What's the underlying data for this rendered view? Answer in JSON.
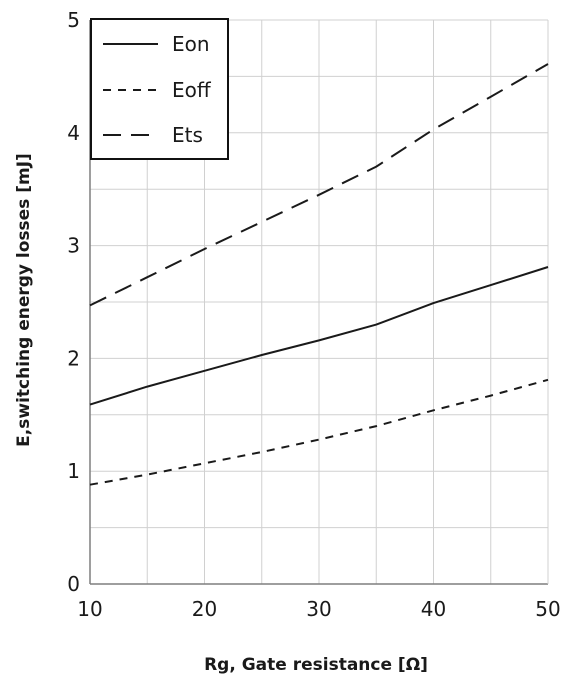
{
  "chart_data": {
    "type": "line",
    "xlabel": "Rg, Gate resistance [Ω]",
    "ylabel": "E,switching energy losses [mJ]",
    "xlim": [
      10,
      50
    ],
    "ylim": [
      0,
      5
    ],
    "x_ticks": [
      "10",
      "20",
      "30",
      "40",
      "50"
    ],
    "y_ticks": [
      "0",
      "1",
      "2",
      "3",
      "4",
      "5"
    ],
    "grid": true,
    "legend_position": "top-left",
    "x": [
      10,
      15,
      20,
      25,
      30,
      35,
      40,
      45,
      50
    ],
    "series": [
      {
        "name": "Eon",
        "style": "solid",
        "values": [
          1.59,
          1.75,
          1.89,
          2.03,
          2.16,
          2.3,
          2.49,
          2.65,
          2.81
        ]
      },
      {
        "name": "Eoff",
        "style": "short-dash",
        "values": [
          0.88,
          0.97,
          1.07,
          1.17,
          1.28,
          1.4,
          1.54,
          1.67,
          1.81
        ]
      },
      {
        "name": "Ets",
        "style": "long-dash",
        "values": [
          2.47,
          2.72,
          2.97,
          3.21,
          3.45,
          3.7,
          4.03,
          4.32,
          4.61
        ]
      }
    ],
    "colors": {
      "line": "#1a1a1a",
      "grid": "#d0d0d0",
      "axis": "#7f7f7f"
    }
  }
}
